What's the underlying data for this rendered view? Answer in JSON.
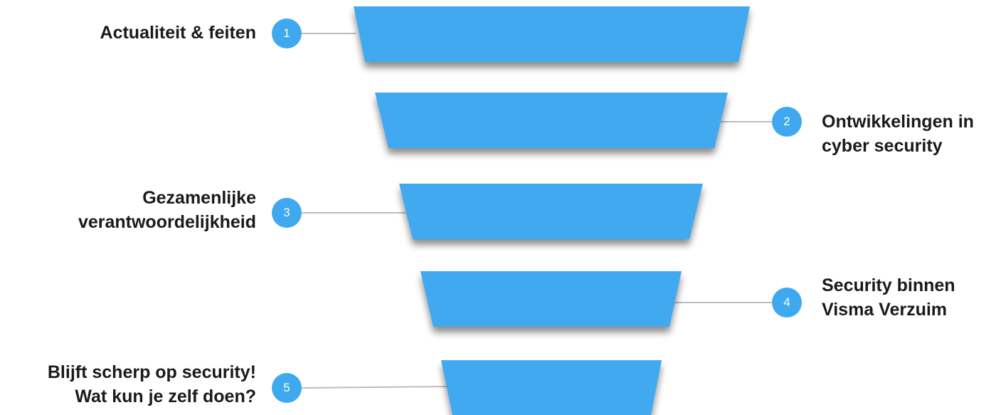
{
  "diagram": {
    "stages": [
      {
        "number": "1",
        "lines": [
          "Actualiteit & feiten"
        ]
      },
      {
        "number": "2",
        "lines": [
          "Ontwikkelingen in",
          "cyber security"
        ]
      },
      {
        "number": "3",
        "lines": [
          "Gezamenlijke",
          "verantwoordelijkheid"
        ]
      },
      {
        "number": "4",
        "lines": [
          "Security binnen",
          "Visma Verzuim"
        ]
      },
      {
        "number": "5",
        "lines": [
          "Blijft scherp op security!",
          "Wat kun je zelf doen?"
        ]
      }
    ],
    "colors": {
      "segment": "#3fa9f0",
      "connector": "#bdbdbd",
      "badge": "#3fa9f0",
      "text": "#1a1a1a"
    }
  }
}
